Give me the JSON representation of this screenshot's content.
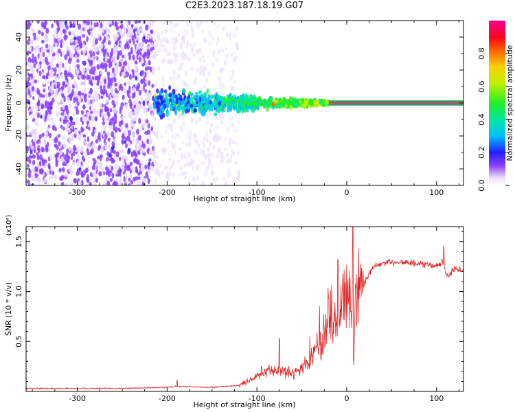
{
  "title": "C2E3.2023.187.18.19.G07",
  "colors": {
    "signal": "#e02020",
    "spectrum_tail": "#f00080",
    "spectrum_mid": "#00e020",
    "spectrum_low": "#6000ff"
  },
  "chart_data": [
    {
      "type": "heatmap",
      "xlabel": "Height of straight line (km)",
      "ylabel": "Frequency (Hz)",
      "xlim": [
        -357,
        130
      ],
      "ylim": [
        -50,
        50
      ],
      "x_ticks": [
        -300,
        -200,
        -100,
        0,
        100
      ],
      "x_tick_labels": [
        "-300",
        "-200",
        "-100",
        "0",
        "100"
      ],
      "y_ticks": [
        -40,
        -20,
        0,
        20,
        40
      ],
      "y_tick_labels": [
        "-40",
        "-20",
        "0",
        "20",
        "40"
      ],
      "colorbar": {
        "label": "Normalized spectral amplitude",
        "range": [
          0,
          1
        ],
        "ticks": [
          0.0,
          0.2,
          0.4,
          0.6,
          0.8
        ],
        "tick_labels": [
          "0.0",
          "0.2",
          "0.4",
          "0.6",
          "0.8"
        ]
      },
      "features": [
        {
          "x_range": [
            -357,
            -215
          ],
          "freq_range": [
            -50,
            50
          ],
          "amplitude": 0.12,
          "description": "broadband noise"
        },
        {
          "x_range": [
            -215,
            -120
          ],
          "freq_range": [
            -50,
            50
          ],
          "amplitude": 0.06,
          "description": "sparse noise"
        },
        {
          "x_range": [
            -215,
            -20
          ],
          "freq_range": [
            -10,
            10
          ],
          "amplitude": 0.3,
          "description": "converging signal"
        },
        {
          "x_range": [
            -20,
            130
          ],
          "freq_range": [
            -1,
            1
          ],
          "amplitude": 0.95,
          "description": "steady carrier line"
        }
      ]
    },
    {
      "type": "line",
      "xlabel": "Height of straight line (km)",
      "ylabel": "SNR (10 * v/v)",
      "y_multiplier": "(x10⁴)",
      "xlim": [
        -357,
        130
      ],
      "ylim": [
        0,
        16500
      ],
      "x_ticks": [
        -300,
        -200,
        -100,
        0,
        100
      ],
      "x_tick_labels": [
        "-300",
        "-200",
        "-100",
        "0",
        "100"
      ],
      "y_ticks": [
        5000,
        10000,
        15000
      ],
      "y_tick_labels": [
        "0.5",
        "1.0",
        "1.5"
      ],
      "series": [
        {
          "x": [
            -357,
            -300,
            -250,
            -200,
            -190,
            -150,
            -120,
            -100,
            -80,
            -60,
            -40,
            -30,
            -20,
            -10,
            -5,
            0,
            5,
            8,
            10,
            20,
            30,
            40,
            60,
            80,
            100,
            108,
            110,
            120,
            130
          ],
          "y": [
            300,
            300,
            300,
            400,
            500,
            400,
            600,
            1500,
            2200,
            1800,
            3000,
            4500,
            6000,
            7000,
            9000,
            10500,
            9000,
            2500,
            10000,
            11000,
            12500,
            12800,
            13000,
            12700,
            12600,
            13000,
            11500,
            12200,
            12100
          ],
          "spikes": [
            {
              "x": -189,
              "y": 1100
            },
            {
              "x": -95,
              "y": 2500
            },
            {
              "x": -75,
              "y": 5300
            },
            {
              "x": -20,
              "y": 9400
            },
            {
              "x": -10,
              "y": 13200
            },
            {
              "x": 7,
              "y": 16500
            },
            {
              "x": 108,
              "y": 14500
            }
          ]
        }
      ]
    }
  ]
}
